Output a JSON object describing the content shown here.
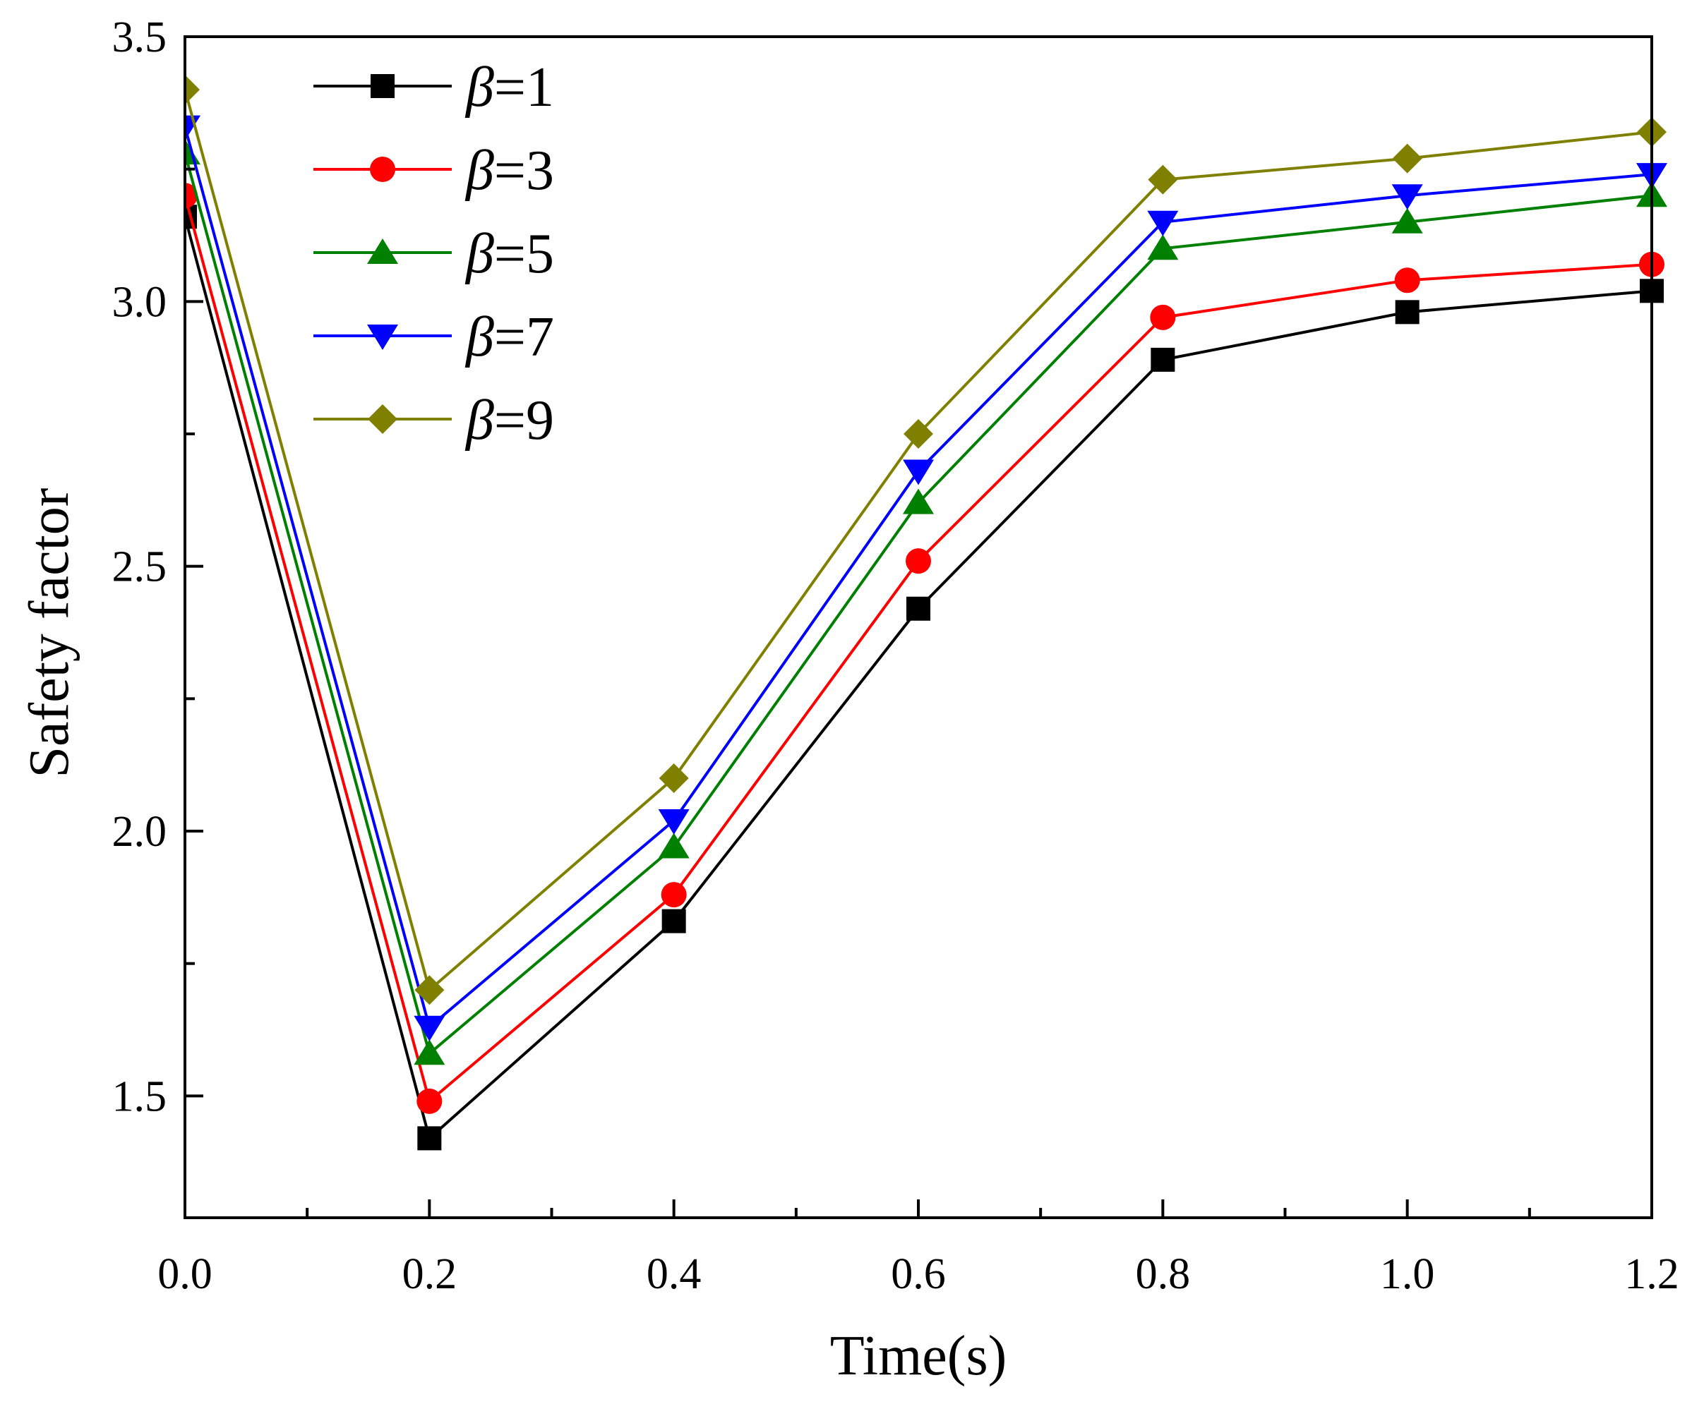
{
  "chart_data": {
    "type": "line",
    "title": "",
    "xlabel": "Time(s)",
    "ylabel": "Safety factor",
    "xlim": [
      0,
      1.2
    ],
    "ylim": [
      1.27,
      3.5
    ],
    "xticks": [
      0.0,
      0.2,
      0.4,
      0.6,
      0.8,
      1.0,
      1.2
    ],
    "xtick_labels": [
      "0.0",
      "0.2",
      "0.4",
      "0.6",
      "0.8",
      "1.0",
      "1.2"
    ],
    "x_minor_ticks": [
      0.1,
      0.3,
      0.5,
      0.7,
      0.9,
      1.1
    ],
    "yticks": [
      1.5,
      2.0,
      2.5,
      3.0,
      3.5
    ],
    "ytick_labels": [
      "1.5",
      "2.0",
      "2.5",
      "3.0",
      "3.5"
    ],
    "y_minor_ticks": [
      1.75,
      2.25,
      2.75,
      3.25
    ],
    "grid": false,
    "legend_position": "top-left",
    "x": [
      0.0,
      0.2,
      0.4,
      0.6,
      0.8,
      1.0,
      1.2
    ],
    "series": [
      {
        "name": "β=1",
        "symbol": "β",
        "label_suffix": "=1",
        "color": "#000000",
        "marker": "square",
        "values": [
          3.16,
          1.42,
          1.83,
          2.42,
          2.89,
          2.98,
          3.02
        ]
      },
      {
        "name": "β=3",
        "symbol": "β",
        "label_suffix": "=3",
        "color": "#ff0000",
        "marker": "circle",
        "values": [
          3.2,
          1.49,
          1.88,
          2.51,
          2.97,
          3.04,
          3.07
        ]
      },
      {
        "name": "β=5",
        "symbol": "β",
        "label_suffix": "=5",
        "color": "#008000",
        "marker": "triangle-up",
        "values": [
          3.28,
          1.58,
          1.97,
          2.62,
          3.1,
          3.15,
          3.2
        ]
      },
      {
        "name": "β=7",
        "symbol": "β",
        "label_suffix": "=7",
        "color": "#0000ff",
        "marker": "triangle-down",
        "values": [
          3.33,
          1.63,
          2.02,
          2.68,
          3.15,
          3.2,
          3.24
        ]
      },
      {
        "name": "β=9",
        "symbol": "β",
        "label_suffix": "=9",
        "color": "#808000",
        "marker": "diamond",
        "values": [
          3.4,
          1.7,
          2.1,
          2.75,
          3.23,
          3.27,
          3.32
        ]
      }
    ]
  }
}
